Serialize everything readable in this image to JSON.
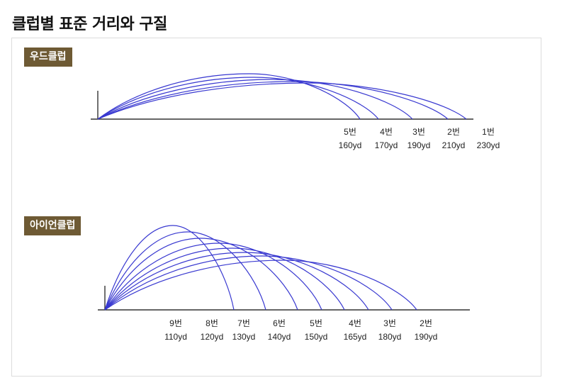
{
  "title": "클럽별 표준 거리와 구질",
  "colors": {
    "trajectory": "#3838d0",
    "badge_bg": "#6e5a34",
    "axis": "#333333"
  },
  "sections": [
    {
      "id": "wood",
      "label": "우드클럽",
      "clubs": [
        {
          "number": "5번",
          "distance": "160yd",
          "dist_val": 160
        },
        {
          "number": "4번",
          "distance": "170yd",
          "dist_val": 170
        },
        {
          "number": "3번",
          "distance": "190yd",
          "dist_val": 190
        },
        {
          "number": "2번",
          "distance": "210yd",
          "dist_val": 210
        },
        {
          "number": "1번",
          "distance": "230yd",
          "dist_val": 230
        }
      ]
    },
    {
      "id": "iron",
      "label": "아이언클럽",
      "clubs": [
        {
          "number": "9번",
          "distance": "110yd",
          "dist_val": 110
        },
        {
          "number": "8번",
          "distance": "120yd",
          "dist_val": 120
        },
        {
          "number": "7번",
          "distance": "130yd",
          "dist_val": 130
        },
        {
          "number": "6번",
          "distance": "140yd",
          "dist_val": 140
        },
        {
          "number": "5번",
          "distance": "150yd",
          "dist_val": 150
        },
        {
          "number": "4번",
          "distance": "165yd",
          "dist_val": 165
        },
        {
          "number": "3번",
          "distance": "180yd",
          "dist_val": 180
        },
        {
          "number": "2번",
          "distance": "190yd",
          "dist_val": 190
        }
      ]
    }
  ]
}
